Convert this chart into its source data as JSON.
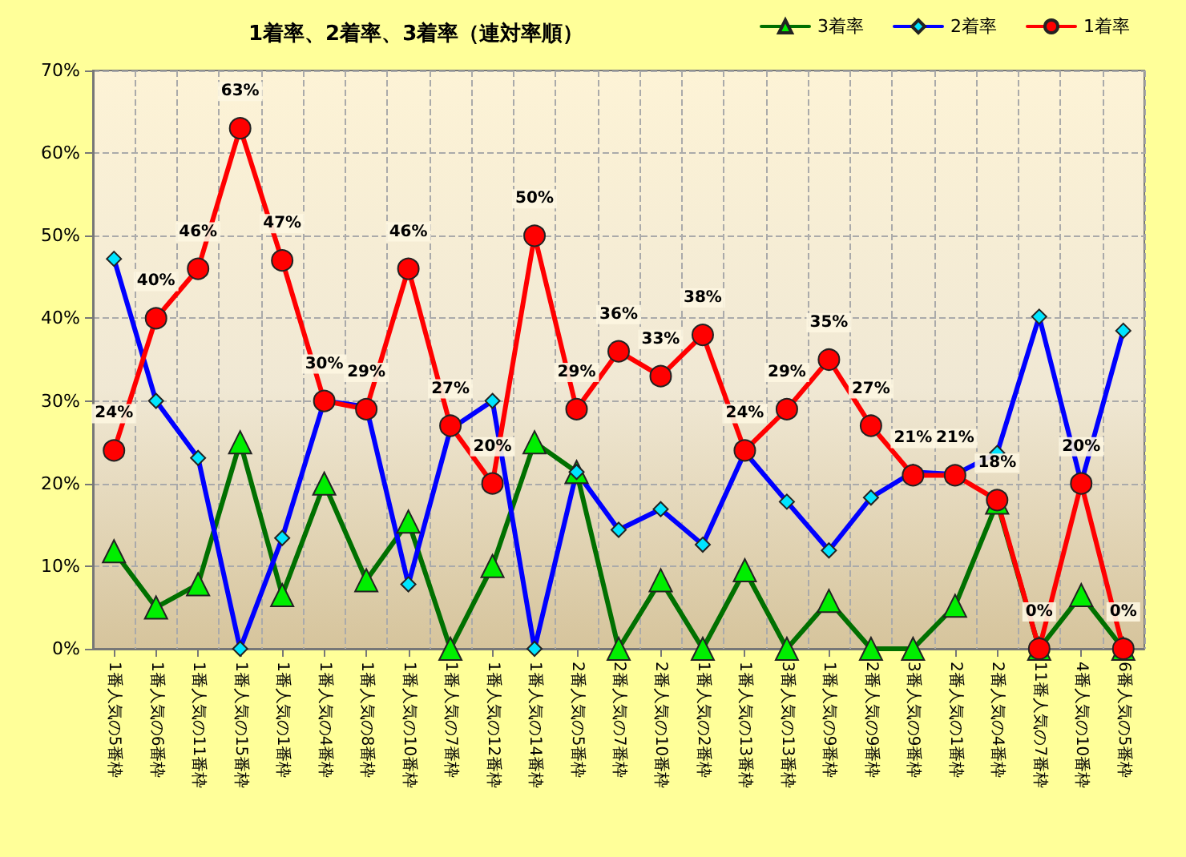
{
  "chart_data": {
    "type": "line",
    "title": "1着率、2着率、3着率（連対率順）",
    "categories": [
      "1番人気の5番枠",
      "1番人気の6番枠",
      "1番人気の11番枠",
      "1番人気の15番枠",
      "1番人気の1番枠",
      "1番人気の4番枠",
      "1番人気の8番枠",
      "1番人気の10番枠",
      "1番人気の7番枠",
      "1番人気の12番枠",
      "1番人気の14番枠",
      "2番人気の5番枠",
      "2番人気の7番枠",
      "2番人気の10番枠",
      "1番人気の2番枠",
      "1番人気の13番枠",
      "3番人気の13番枠",
      "1番人気の9番枠",
      "2番人気の9番枠",
      "3番人気の9番枠",
      "2番人気の1番枠",
      "2番人気の4番枠",
      "11番人気の7番枠",
      "4番人気の10番枠",
      "6番人気の5番枠"
    ],
    "series": [
      {
        "name": "3着率",
        "color": "#007000",
        "marker": "triangle",
        "values": [
          11.8,
          5,
          7.8,
          25,
          6.5,
          20,
          8.3,
          15.4,
          0,
          10,
          25,
          21.4,
          0,
          8.3,
          0,
          9.5,
          0,
          5.8,
          0,
          0,
          5.2,
          17.7,
          0,
          6.5,
          0
        ]
      },
      {
        "name": "2着率",
        "color": "#0000ff",
        "marker": "diamond",
        "values": [
          47.2,
          30,
          23.1,
          0,
          13.4,
          30,
          29.3,
          7.8,
          26.6,
          30,
          0,
          21.4,
          14.4,
          16.9,
          12.6,
          23.8,
          17.8,
          11.9,
          18.3,
          21.4,
          21.1,
          23.7,
          40.2,
          20.1,
          38.5
        ]
      },
      {
        "name": "1着率",
        "color": "#ff0000",
        "marker": "circle",
        "values": [
          24,
          40,
          46,
          63,
          47,
          30,
          29,
          46,
          27,
          20,
          50,
          29,
          36,
          33,
          38,
          24,
          29,
          35,
          27,
          21,
          21,
          18,
          0,
          20,
          0
        ],
        "value_labels": [
          "24%",
          "40%",
          "46%",
          "63%",
          "47%",
          "30%",
          "29%",
          "46%",
          "27%",
          "20%",
          "50%",
          "29%",
          "36%",
          "33%",
          "38%",
          "24%",
          "29%",
          "35%",
          "27%",
          "21%",
          "21%",
          "18%",
          "0%",
          "20%",
          "0%"
        ]
      }
    ],
    "ylim": [
      0,
      70
    ],
    "yticks": [
      {
        "value": 0,
        "label": "0%"
      },
      {
        "value": 10,
        "label": "10%"
      },
      {
        "value": 20,
        "label": "20%"
      },
      {
        "value": 30,
        "label": "30%"
      },
      {
        "value": 40,
        "label": "40%"
      },
      {
        "value": 50,
        "label": "50%"
      },
      {
        "value": 60,
        "label": "60%"
      },
      {
        "value": 70,
        "label": "70%"
      }
    ],
    "grid": true,
    "legend": "top right"
  }
}
